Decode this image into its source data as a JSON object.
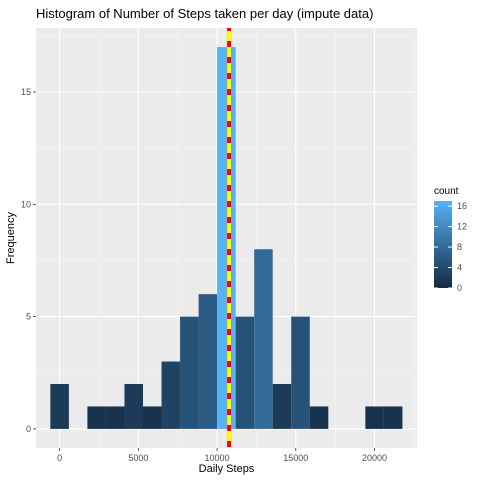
{
  "chart_data": {
    "type": "bar",
    "title": "Histogram of Number of Steps taken per day (impute data)",
    "xlabel": "Daily Steps",
    "ylabel": "Frequency",
    "bin_width": 1177,
    "bins": [
      {
        "x": 0,
        "count": 2
      },
      {
        "x": 1177,
        "count": 0
      },
      {
        "x": 2354,
        "count": 1
      },
      {
        "x": 3531,
        "count": 1
      },
      {
        "x": 4708,
        "count": 2
      },
      {
        "x": 5885,
        "count": 1
      },
      {
        "x": 7062,
        "count": 3
      },
      {
        "x": 8239,
        "count": 5
      },
      {
        "x": 9416,
        "count": 6
      },
      {
        "x": 10593,
        "count": 17
      },
      {
        "x": 11770,
        "count": 5
      },
      {
        "x": 12947,
        "count": 8
      },
      {
        "x": 14124,
        "count": 2
      },
      {
        "x": 15301,
        "count": 5
      },
      {
        "x": 16478,
        "count": 1
      },
      {
        "x": 17655,
        "count": 0
      },
      {
        "x": 18832,
        "count": 0
      },
      {
        "x": 20009,
        "count": 1
      },
      {
        "x": 21186,
        "count": 1
      }
    ],
    "xlim": [
      -1500,
      22700
    ],
    "ylim": [
      -0.85,
      17.85
    ],
    "x_ticks": [
      0,
      5000,
      10000,
      15000,
      20000
    ],
    "y_ticks": [
      0,
      5,
      10,
      15
    ],
    "vline": {
      "x": 10766,
      "colors": [
        "#ff0000",
        "#ffff00"
      ],
      "style": "dashed"
    },
    "legend": {
      "title": "count",
      "position": "right",
      "breaks": [
        16,
        12,
        8,
        4,
        0
      ],
      "low_color": "#132b43",
      "high_color": "#56b1f7",
      "range": [
        0,
        17
      ]
    },
    "panel_background": "#ebebeb",
    "grid": true
  }
}
